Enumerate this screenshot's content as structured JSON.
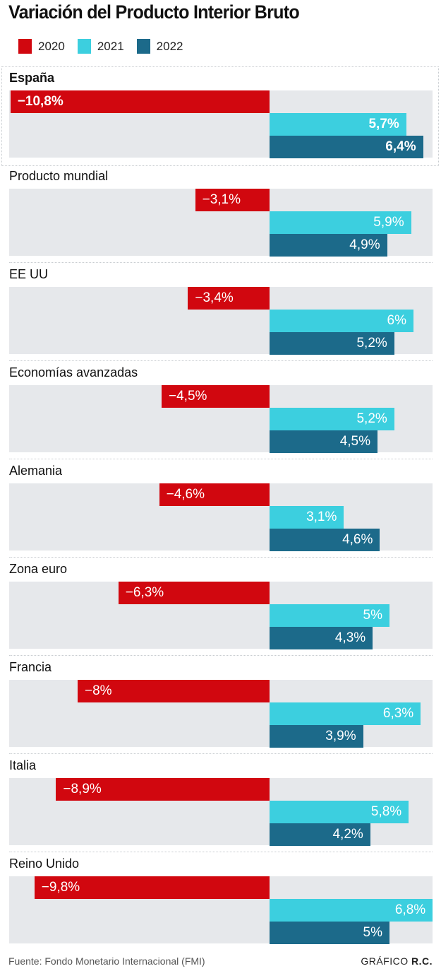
{
  "chart_data": {
    "type": "bar",
    "orientation": "horizontal",
    "title": "Variación del Producto Interior Bruto",
    "xlabel": "",
    "ylabel": "",
    "unit": "%",
    "grid": false,
    "legend_position": "top-left",
    "xlim": [
      -11,
      6.8
    ],
    "categories": [
      "España",
      "Producto mundial",
      "EE UU",
      "Economías avanzadas",
      "Alemania",
      "Zona euro",
      "Francia",
      "Italia",
      "Reino Unido"
    ],
    "highlighted_category": "España",
    "series": [
      {
        "name": "2020",
        "color": "#d1070f",
        "values": [
          -10.8,
          -3.1,
          -3.4,
          -4.5,
          -4.6,
          -6.3,
          -8.0,
          -8.9,
          -9.8
        ],
        "labels": [
          "−10,8%",
          "−3,1%",
          "−3,4%",
          "−4,5%",
          "−4,6%",
          "−6,3%",
          "−8%",
          "−8,9%",
          "−9,8%"
        ]
      },
      {
        "name": "2021",
        "color": "#3ccfdf",
        "values": [
          5.7,
          5.9,
          6.0,
          5.2,
          3.1,
          5.0,
          6.3,
          5.8,
          6.8
        ],
        "labels": [
          "5,7%",
          "5,9%",
          "6%",
          "5,2%",
          "3,1%",
          "5%",
          "6,3%",
          "5,8%",
          "6,8%"
        ]
      },
      {
        "name": "2022",
        "color": "#1c6a8a",
        "values": [
          6.4,
          4.9,
          5.2,
          4.5,
          4.6,
          4.3,
          3.9,
          4.2,
          5.0
        ],
        "labels": [
          "6,4%",
          "4,9%",
          "5,2%",
          "4,5%",
          "4,6%",
          "4,3%",
          "3,9%",
          "4,2%",
          "5%"
        ]
      }
    ]
  },
  "footer": {
    "source": "Fuente: Fondo Monetario Internacional (FMI)",
    "credit_prefix": "GRÁFICO",
    "credit_author": "R.C."
  },
  "colors": {
    "panel_background": "#e6e8eb",
    "separator": "#c8ccd0"
  }
}
